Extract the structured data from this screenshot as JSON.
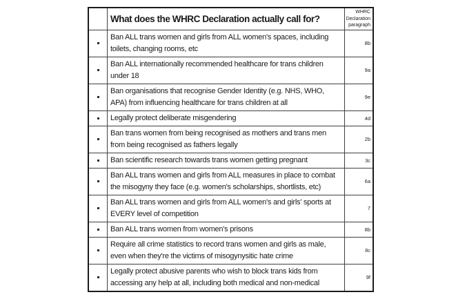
{
  "colors": {
    "border": "#1a1a1a",
    "grid": "#3f3f3f",
    "text": "#1a1a1a",
    "page_bg": "#ffffff"
  },
  "table": {
    "title": "What does the WHRC Declaration actually call for?",
    "paragraph_header": "WHRC Declaration paragraph",
    "bullet_icon": "square-bullet",
    "rows": [
      {
        "text": "Ban ALL trans women and girls from ALL women's spaces, including toilets, changing rooms, etc",
        "ref": "8b"
      },
      {
        "text": "Ban ALL internationally recommended healthcare for trans children under 18",
        "ref": "9a"
      },
      {
        "text": "Ban organisations that recognise Gender Identity (e.g. NHS, WHO, APA) from influencing healthcare for trans children at all",
        "ref": "9e"
      },
      {
        "text": "Legally protect deliberate misgendering",
        "ref": "4d"
      },
      {
        "text": "Ban trans women from being recognised as mothers and trans men from being recognised as fathers legally",
        "ref": "2b"
      },
      {
        "text": "Ban scientific research towards trans women getting pregnant",
        "ref": "3c"
      },
      {
        "text": "Ban ALL trans women and girls from ALL measures in place to combat the misogyny they face (e.g. women's scholarships, shortlists, etc)",
        "ref": "6a"
      },
      {
        "text": "Ban ALL trans women and girls from ALL women's and girls' sports at EVERY level of competition",
        "ref": "7"
      },
      {
        "text": "Ban ALL trans women from women's prisons",
        "ref": "8b"
      },
      {
        "text": "Require all crime statistics to record trans women and girls as male, even when they're the victims of misogynysitic hate crime",
        "ref": "8c"
      },
      {
        "text": "Legally protect abusive parents who wish to block trans kids from accessing any help at all, including both medical and non-medical",
        "ref": "9f"
      }
    ]
  }
}
